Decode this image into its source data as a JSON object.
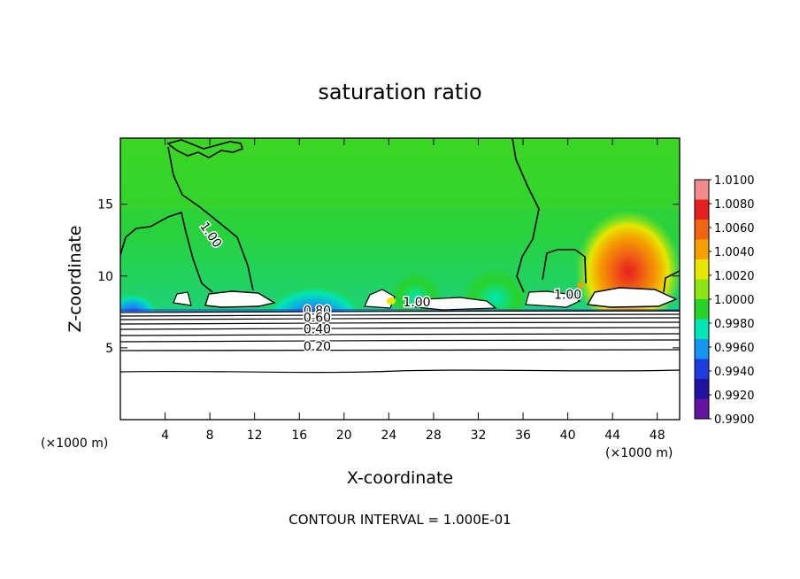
{
  "chart_data": {
    "type": "heatmap",
    "title": "saturation ratio",
    "xlabel": "X-coordinate",
    "ylabel": "Z-coordinate",
    "x_unit": "(×1000 m)",
    "y_unit": "(×1000 m)",
    "xlim": [
      0,
      50
    ],
    "ylim": [
      0,
      19.6
    ],
    "x_ticks": [
      "4",
      "8",
      "12",
      "16",
      "20",
      "24",
      "28",
      "32",
      "36",
      "40",
      "44",
      "48"
    ],
    "x_tick_values": [
      4,
      8,
      12,
      16,
      20,
      24,
      28,
      32,
      36,
      40,
      44,
      48
    ],
    "y_ticks": [
      "5",
      "10",
      "15"
    ],
    "y_tick_values": [
      5,
      10,
      15
    ],
    "colorbar": {
      "labels": [
        "1.0100",
        "1.0080",
        "1.0060",
        "1.0040",
        "1.0020",
        "1.0000",
        "0.9980",
        "0.9960",
        "0.9940",
        "0.9920",
        "0.9900"
      ],
      "colors": [
        "#f08c8c",
        "#e61e1e",
        "#f06414",
        "#f5a000",
        "#e6e600",
        "#8ce614",
        "#28d228",
        "#00e6b4",
        "#1496f0",
        "#1e3cdc",
        "#1e14a0",
        "#6414a0"
      ]
    },
    "contour_labels": [
      {
        "text": "1.00",
        "x": 7.8,
        "z": 12.7
      },
      {
        "text": "1.00",
        "x": 26.5,
        "z": 7.9
      },
      {
        "text": "1.00",
        "x": 40.0,
        "z": 8.4
      },
      {
        "text": "0.80",
        "x": 17.6,
        "z": 7.3
      },
      {
        "text": "0.60",
        "x": 17.6,
        "z": 6.8
      },
      {
        "text": "0.40",
        "x": 17.6,
        "z": 6.0
      },
      {
        "text": "0.20",
        "x": 17.6,
        "z": 4.8
      }
    ],
    "contour_interval": "CONTOUR INTERVAL = 1.000E-01",
    "grid": false,
    "legend": "colorbar-right"
  }
}
